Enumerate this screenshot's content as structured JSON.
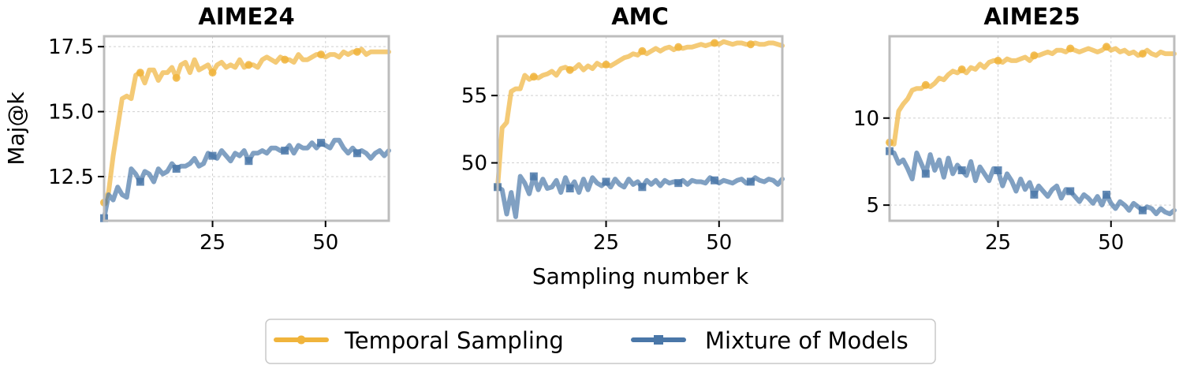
{
  "figure": {
    "ylabel": "Maj@k",
    "xlabel": "Sampling number k"
  },
  "legend": {
    "items": [
      {
        "label": "Temporal Sampling",
        "color": "#f0b43c"
      },
      {
        "label": "Mixture of Models",
        "color": "#4a77a8"
      }
    ]
  },
  "chart_data": [
    {
      "type": "line",
      "title": "AIME24",
      "xlabel": "Sampling number k",
      "ylabel": "Maj@k",
      "xlim": [
        1,
        64
      ],
      "ylim": [
        10.8,
        17.9
      ],
      "xticks": [
        25,
        50
      ],
      "yticks": [
        12.5,
        15.0,
        17.5
      ],
      "ytick_labels": [
        "12.5",
        "15.0",
        "17.5"
      ],
      "grid": true,
      "series": [
        {
          "name": "Temporal Sampling",
          "color": "#f0b43c",
          "marker": "circle",
          "x": [
            1,
            2,
            3,
            4,
            5,
            6,
            7,
            8,
            9,
            10,
            11,
            12,
            13,
            14,
            15,
            16,
            17,
            18,
            19,
            20,
            21,
            22,
            23,
            24,
            25,
            26,
            27,
            28,
            29,
            30,
            31,
            32,
            33,
            34,
            35,
            36,
            37,
            38,
            39,
            40,
            41,
            42,
            43,
            44,
            45,
            46,
            47,
            48,
            49,
            50,
            51,
            52,
            53,
            54,
            55,
            56,
            57,
            58,
            59,
            60,
            61,
            62,
            63,
            64
          ],
          "y": [
            11.5,
            11.9,
            13.3,
            14.4,
            15.5,
            15.6,
            15.5,
            16.4,
            16.5,
            16.1,
            16.6,
            16.6,
            16.2,
            16.5,
            16.5,
            16.7,
            16.3,
            16.8,
            16.9,
            16.5,
            17.0,
            16.6,
            16.7,
            16.8,
            16.5,
            16.8,
            16.9,
            16.7,
            16.8,
            16.7,
            17.0,
            16.7,
            16.8,
            16.8,
            16.7,
            17.0,
            17.1,
            17.0,
            16.9,
            17.1,
            17.0,
            17.0,
            16.9,
            17.2,
            17.0,
            17.0,
            17.1,
            17.2,
            17.2,
            17.1,
            17.2,
            17.2,
            17.1,
            17.3,
            17.2,
            17.3,
            17.3,
            17.4,
            17.2,
            17.3,
            17.3,
            17.3,
            17.3,
            17.3
          ],
          "marker_x": [
            1,
            9,
            17,
            25,
            33,
            41,
            49,
            57
          ]
        },
        {
          "name": "Mixture of Models",
          "color": "#4a77a8",
          "marker": "square",
          "x": [
            1,
            2,
            3,
            4,
            5,
            6,
            7,
            8,
            9,
            10,
            11,
            12,
            13,
            14,
            15,
            16,
            17,
            18,
            19,
            20,
            21,
            22,
            23,
            24,
            25,
            26,
            27,
            28,
            29,
            30,
            31,
            32,
            33,
            34,
            35,
            36,
            37,
            38,
            39,
            40,
            41,
            42,
            43,
            44,
            45,
            46,
            47,
            48,
            49,
            50,
            51,
            52,
            53,
            54,
            55,
            56,
            57,
            58,
            59,
            60,
            61,
            62,
            63,
            64
          ],
          "y": [
            10.9,
            11.8,
            11.6,
            12.1,
            11.8,
            11.7,
            12.8,
            12.6,
            12.3,
            12.7,
            12.6,
            12.3,
            12.8,
            12.6,
            12.7,
            13.0,
            12.8,
            12.9,
            12.9,
            13.0,
            13.2,
            12.9,
            13.0,
            13.4,
            13.3,
            13.2,
            13.5,
            13.3,
            13.1,
            13.4,
            13.3,
            13.5,
            13.1,
            13.4,
            13.4,
            13.5,
            13.4,
            13.6,
            13.6,
            13.5,
            13.5,
            13.7,
            13.4,
            13.7,
            13.6,
            13.6,
            13.8,
            13.6,
            13.8,
            13.7,
            13.6,
            13.9,
            13.9,
            13.6,
            13.4,
            13.6,
            13.4,
            13.5,
            13.4,
            13.2,
            13.4,
            13.5,
            13.3,
            13.5
          ],
          "marker_x": [
            1,
            9,
            17,
            25,
            33,
            41,
            49,
            57
          ]
        }
      ]
    },
    {
      "type": "line",
      "title": "AMC",
      "xlabel": "Sampling number k",
      "ylabel": "",
      "xlim": [
        1,
        64
      ],
      "ylim": [
        45.7,
        59.4
      ],
      "xticks": [
        25,
        50
      ],
      "yticks": [
        50,
        55
      ],
      "ytick_labels": [
        "50",
        "55"
      ],
      "grid": true,
      "series": [
        {
          "name": "Temporal Sampling",
          "color": "#f0b43c",
          "marker": "circle",
          "x": [
            1,
            2,
            3,
            4,
            5,
            6,
            7,
            8,
            9,
            10,
            11,
            12,
            13,
            14,
            15,
            16,
            17,
            18,
            19,
            20,
            21,
            22,
            23,
            24,
            25,
            26,
            27,
            28,
            29,
            30,
            31,
            32,
            33,
            34,
            35,
            36,
            37,
            38,
            39,
            40,
            41,
            42,
            43,
            44,
            45,
            46,
            47,
            48,
            49,
            50,
            51,
            52,
            53,
            54,
            55,
            56,
            57,
            58,
            59,
            60,
            61,
            62,
            63,
            64
          ],
          "y": [
            48.2,
            52.6,
            53.0,
            55.3,
            55.5,
            55.5,
            56.5,
            56.2,
            56.4,
            56.3,
            56.5,
            56.6,
            56.8,
            56.5,
            57.0,
            57.1,
            56.9,
            57.0,
            57.3,
            56.9,
            57.2,
            57.0,
            57.4,
            57.2,
            57.3,
            57.2,
            57.4,
            57.6,
            57.8,
            57.9,
            58.1,
            58.0,
            58.3,
            58.1,
            58.3,
            58.5,
            58.3,
            58.5,
            58.6,
            58.4,
            58.6,
            58.5,
            58.6,
            58.6,
            58.7,
            58.8,
            58.7,
            58.8,
            58.9,
            58.8,
            59.0,
            58.9,
            58.8,
            58.9,
            58.9,
            58.8,
            58.8,
            58.9,
            58.8,
            58.8,
            58.9,
            58.9,
            58.8,
            58.7
          ],
          "marker_x": [
            1,
            9,
            17,
            25,
            33,
            41,
            49,
            57
          ]
        },
        {
          "name": "Mixture of Models",
          "color": "#4a77a8",
          "marker": "square",
          "x": [
            1,
            2,
            3,
            4,
            5,
            6,
            7,
            8,
            9,
            10,
            11,
            12,
            13,
            14,
            15,
            16,
            17,
            18,
            19,
            20,
            21,
            22,
            23,
            24,
            25,
            26,
            27,
            28,
            29,
            30,
            31,
            32,
            33,
            34,
            35,
            36,
            37,
            38,
            39,
            40,
            41,
            42,
            43,
            44,
            45,
            46,
            47,
            48,
            49,
            50,
            51,
            52,
            53,
            54,
            55,
            56,
            57,
            58,
            59,
            60,
            61,
            62,
            63,
            64
          ],
          "y": [
            48.2,
            48.0,
            46.2,
            47.8,
            46.0,
            49.0,
            48.5,
            47.7,
            49.0,
            48.0,
            48.8,
            48.1,
            48.2,
            48.7,
            47.8,
            48.9,
            48.1,
            48.6,
            47.8,
            48.8,
            48.0,
            48.9,
            48.5,
            48.3,
            48.6,
            48.2,
            48.8,
            48.4,
            48.2,
            48.8,
            48.4,
            48.6,
            48.2,
            48.7,
            48.4,
            48.7,
            48.3,
            48.7,
            48.5,
            48.6,
            48.5,
            48.7,
            48.4,
            48.7,
            48.6,
            48.6,
            48.5,
            48.9,
            48.7,
            48.5,
            48.7,
            48.6,
            48.5,
            48.7,
            48.8,
            48.5,
            48.6,
            48.9,
            48.7,
            48.6,
            48.8,
            48.7,
            48.4,
            48.8
          ],
          "marker_x": [
            1,
            9,
            17,
            25,
            33,
            41,
            49,
            57
          ]
        }
      ]
    },
    {
      "type": "line",
      "title": "AIME25",
      "xlabel": "Sampling number k",
      "ylabel": "",
      "xlim": [
        1,
        64
      ],
      "ylim": [
        4.1,
        14.7
      ],
      "xticks": [
        25,
        50
      ],
      "yticks": [
        5,
        10
      ],
      "ytick_labels": [
        "5",
        "10"
      ],
      "grid": true,
      "series": [
        {
          "name": "Temporal Sampling",
          "color": "#f0b43c",
          "marker": "circle",
          "x": [
            1,
            2,
            3,
            4,
            5,
            6,
            7,
            8,
            9,
            10,
            11,
            12,
            13,
            14,
            15,
            16,
            17,
            18,
            19,
            20,
            21,
            22,
            23,
            24,
            25,
            26,
            27,
            28,
            29,
            30,
            31,
            32,
            33,
            34,
            35,
            36,
            37,
            38,
            39,
            40,
            41,
            42,
            43,
            44,
            45,
            46,
            47,
            48,
            49,
            50,
            51,
            52,
            53,
            54,
            55,
            56,
            57,
            58,
            59,
            60,
            61,
            62,
            63,
            64
          ],
          "y": [
            8.6,
            8.5,
            10.4,
            10.8,
            11.1,
            11.6,
            11.7,
            11.7,
            11.9,
            11.8,
            12.0,
            12.3,
            12.2,
            12.5,
            12.7,
            12.6,
            12.8,
            12.6,
            12.9,
            12.8,
            13.1,
            12.9,
            13.2,
            13.3,
            13.3,
            13.2,
            13.4,
            13.3,
            13.3,
            13.4,
            13.5,
            13.3,
            13.6,
            13.6,
            13.7,
            13.8,
            13.7,
            13.9,
            13.9,
            13.8,
            14.0,
            13.9,
            13.8,
            13.9,
            14.0,
            13.9,
            13.8,
            13.9,
            14.1,
            13.9,
            14.0,
            13.8,
            13.9,
            13.7,
            13.8,
            13.6,
            13.7,
            13.9,
            13.7,
            13.6,
            13.8,
            13.7,
            13.7,
            13.7
          ],
          "marker_x": [
            1,
            9,
            17,
            25,
            33,
            41,
            49,
            57
          ]
        },
        {
          "name": "Mixture of Models",
          "color": "#4a77a8",
          "marker": "square",
          "x": [
            1,
            2,
            3,
            4,
            5,
            6,
            7,
            8,
            9,
            10,
            11,
            12,
            13,
            14,
            15,
            16,
            17,
            18,
            19,
            20,
            21,
            22,
            23,
            24,
            25,
            26,
            27,
            28,
            29,
            30,
            31,
            32,
            33,
            34,
            35,
            36,
            37,
            38,
            39,
            40,
            41,
            42,
            43,
            44,
            45,
            46,
            47,
            48,
            49,
            50,
            51,
            52,
            53,
            54,
            55,
            56,
            57,
            58,
            59,
            60,
            61,
            62,
            63,
            64
          ],
          "y": [
            8.1,
            8.0,
            7.4,
            7.6,
            7.1,
            6.5,
            8.0,
            7.4,
            6.8,
            7.9,
            7.0,
            7.6,
            6.6,
            7.7,
            6.8,
            7.3,
            7.0,
            6.7,
            7.5,
            6.4,
            7.2,
            6.8,
            6.4,
            7.1,
            7.0,
            6.1,
            6.8,
            6.4,
            5.8,
            6.5,
            5.9,
            6.3,
            5.6,
            6.1,
            5.8,
            5.5,
            5.9,
            6.1,
            5.4,
            5.9,
            5.8,
            5.5,
            5.2,
            5.6,
            5.4,
            5.1,
            5.5,
            5.0,
            5.6,
            5.1,
            4.8,
            5.2,
            5.0,
            4.7,
            5.1,
            4.9,
            4.7,
            4.9,
            4.8,
            4.5,
            4.8,
            4.6,
            4.5,
            4.7
          ],
          "marker_x": [
            1,
            9,
            17,
            25,
            33,
            41,
            49,
            57
          ]
        }
      ]
    }
  ]
}
